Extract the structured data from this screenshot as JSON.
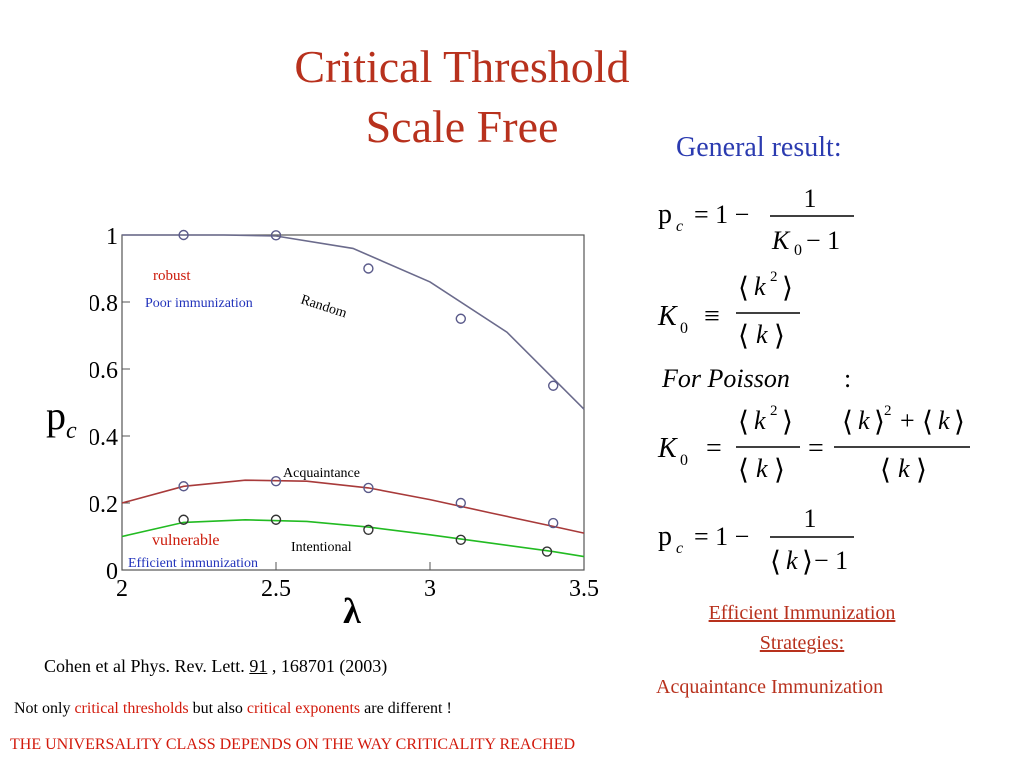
{
  "slide": {
    "title_line1": "Critical Threshold",
    "title_line2": "Scale Free",
    "general_result": "General result:",
    "pc_label": "p",
    "pc_sub": "c",
    "efficient_line1": "Efficient Immunization",
    "efficient_line2": "Strategies:",
    "acquaintance_immunization": "Acquaintance Immunization",
    "citation_prefix": "Cohen et al Phys. Rev. Lett. ",
    "citation_volume": "91",
    "citation_suffix": " , 168701 (2003)",
    "note_part1": "Not only ",
    "note_part2": "critical thresholds",
    "note_part3": " but also ",
    "note_part4": "critical exponents",
    "note_part5": " are different !",
    "universality": "THE UNIVERSALITY CLASS DEPENDS ON THE WAY CRITICALITY REACHED"
  },
  "formulas": {
    "f1_lhs": "p",
    "f1_sub": "c",
    "f1_eq": "= 1 −",
    "f1_num": "1",
    "f1_den": "K",
    "f1_den_sub": "0",
    "f1_den_tail": " − 1",
    "f2_lhs": "K",
    "f2_sub": "0",
    "f2_eq": "≡",
    "f2_num": "k",
    "f2_num_sup": "2",
    "f2_den": "k",
    "f3": "For  Poisson",
    "f3_colon": ":",
    "f4_lhs": "K",
    "f4_sub": "0",
    "f4_eq": "=",
    "f4_num1": "k",
    "f4_num1_sup": "2",
    "f4_den1": "k",
    "f4_eq2": "=",
    "f4_num2a": "k",
    "f4_num2a_sup": "2",
    "f4_plus": "+",
    "f4_num2b": "k",
    "f4_den2": "k",
    "f5_lhs": "p",
    "f5_sub": "c",
    "f5_eq": "= 1 −",
    "f5_num": "1",
    "f5_den": "k",
    "f5_den_tail": " − 1"
  },
  "chart_data": {
    "type": "scatter",
    "xlabel": "λ",
    "ylabel": "",
    "xlim": [
      2,
      3.5
    ],
    "ylim": [
      0,
      1
    ],
    "x_ticks": [
      "2",
      "2.5",
      "3",
      "3.5"
    ],
    "y_ticks": [
      "0",
      "0.2",
      "0.4",
      "0.6",
      "0.8",
      "1"
    ],
    "annotations": {
      "robust": "robust",
      "poor_immunization": "Poor immunization",
      "random": "Random",
      "acquaintance": "Acquaintance",
      "vulnerable": "vulnerable",
      "intentional": "Intentional",
      "efficient_immunization": "Efficient immunization"
    },
    "series": [
      {
        "name": "Random",
        "color": "#6b6b8c",
        "points": [
          [
            2.2,
            1.0
          ],
          [
            2.5,
            0.999
          ],
          [
            2.8,
            0.9
          ],
          [
            3.1,
            0.75
          ],
          [
            3.4,
            0.55
          ]
        ],
        "curve": [
          [
            2.0,
            1.0
          ],
          [
            2.33,
            1.0
          ],
          [
            2.5,
            0.997
          ],
          [
            2.75,
            0.96
          ],
          [
            3.0,
            0.86
          ],
          [
            3.25,
            0.71
          ],
          [
            3.5,
            0.48
          ]
        ]
      },
      {
        "name": "Acquaintance",
        "color": "#a83a3a",
        "points": [
          [
            2.2,
            0.25
          ],
          [
            2.5,
            0.265
          ],
          [
            2.8,
            0.245
          ],
          [
            3.1,
            0.2
          ],
          [
            3.4,
            0.14
          ]
        ],
        "curve": [
          [
            2.0,
            0.2
          ],
          [
            2.2,
            0.25
          ],
          [
            2.4,
            0.268
          ],
          [
            2.6,
            0.265
          ],
          [
            2.8,
            0.245
          ],
          [
            3.0,
            0.21
          ],
          [
            3.2,
            0.17
          ],
          [
            3.4,
            0.13
          ],
          [
            3.5,
            0.11
          ]
        ]
      },
      {
        "name": "Intentional",
        "color": "#22bb22",
        "points": [
          [
            2.2,
            0.15
          ],
          [
            2.5,
            0.15
          ],
          [
            2.8,
            0.12
          ],
          [
            3.1,
            0.09
          ],
          [
            3.38,
            0.055
          ]
        ],
        "curve": [
          [
            2.0,
            0.1
          ],
          [
            2.2,
            0.142
          ],
          [
            2.4,
            0.15
          ],
          [
            2.6,
            0.145
          ],
          [
            2.8,
            0.128
          ],
          [
            3.0,
            0.105
          ],
          [
            3.2,
            0.08
          ],
          [
            3.4,
            0.055
          ],
          [
            3.5,
            0.04
          ]
        ]
      }
    ]
  }
}
